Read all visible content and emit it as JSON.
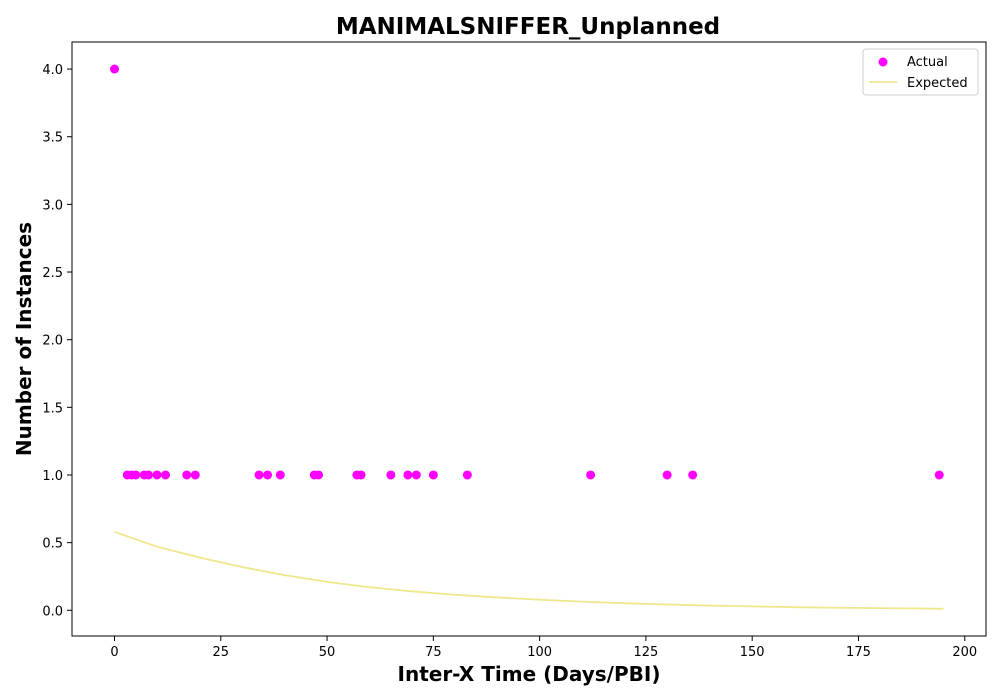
{
  "chart_data": {
    "type": "scatter",
    "title": "MANIMALSNIFFER_Unplanned",
    "xlabel": "Inter-X Time (Days/PBI)",
    "ylabel": "Number of Instances",
    "xlim": [
      -10,
      205
    ],
    "ylim": [
      -0.19,
      4.2
    ],
    "xticks": [
      0,
      25,
      50,
      75,
      100,
      125,
      150,
      175,
      200
    ],
    "yticks": [
      0.0,
      0.5,
      1.0,
      1.5,
      2.0,
      2.5,
      3.0,
      3.5,
      4.0
    ],
    "legend_position": "top-right",
    "series": [
      {
        "name": "Actual",
        "kind": "scatter",
        "color": "#ff00ff",
        "x": [
          0,
          3,
          4,
          5,
          7,
          8,
          10,
          12,
          17,
          19,
          34,
          36,
          39,
          47,
          48,
          57,
          58,
          65,
          69,
          71,
          75,
          83,
          112,
          130,
          136,
          194
        ],
        "y": [
          4,
          1,
          1,
          1,
          1,
          1,
          1,
          1,
          1,
          1,
          1,
          1,
          1,
          1,
          1,
          1,
          1,
          1,
          1,
          1,
          1,
          1,
          1,
          1,
          1,
          1
        ]
      },
      {
        "name": "Expected",
        "kind": "line",
        "color": "#f0e68c",
        "x": [
          0,
          10,
          20,
          30,
          40,
          50,
          60,
          70,
          80,
          90,
          100,
          110,
          120,
          130,
          140,
          150,
          160,
          170,
          180,
          190,
          195
        ],
        "y": [
          0.58,
          0.47,
          0.39,
          0.32,
          0.26,
          0.21,
          0.17,
          0.14,
          0.115,
          0.095,
          0.078,
          0.064,
          0.052,
          0.043,
          0.035,
          0.029,
          0.023,
          0.019,
          0.016,
          0.013,
          0.011
        ]
      }
    ]
  }
}
